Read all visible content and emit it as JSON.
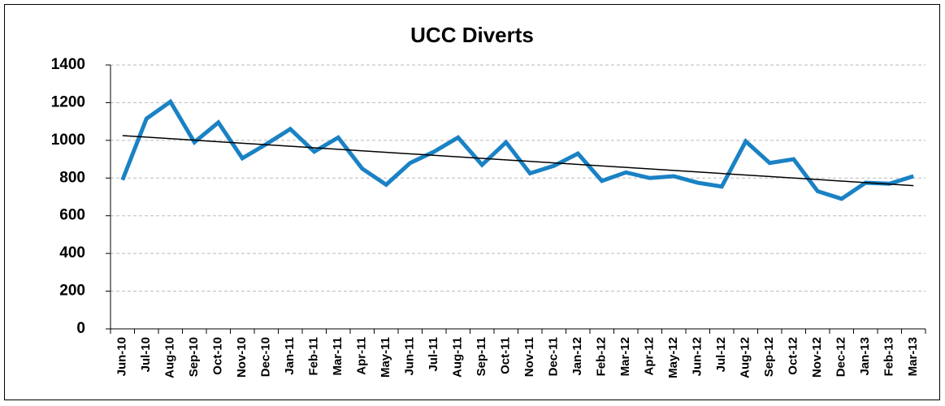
{
  "chart_data": {
    "type": "line",
    "title": "UCC Diverts",
    "categories": [
      "Jun-10",
      "Jul-10",
      "Aug-10",
      "Sep-10",
      "Oct-10",
      "Nov-10",
      "Dec-10",
      "Jan-11",
      "Feb-11",
      "Mar-11",
      "Apr-11",
      "May-11",
      "Jun-11",
      "Jul-11",
      "Aug-11",
      "Sep-11",
      "Oct-11",
      "Nov-11",
      "Dec-11",
      "Jan-12",
      "Feb-12",
      "Mar-12",
      "Apr-12",
      "May-12",
      "Jun-12",
      "Jul-12",
      "Aug-12",
      "Sep-12",
      "Oct-12",
      "Nov-12",
      "Dec-12",
      "Jan-13",
      "Feb-13",
      "Mar-13"
    ],
    "values": [
      790,
      1115,
      1205,
      990,
      1095,
      905,
      980,
      1060,
      940,
      1015,
      850,
      765,
      880,
      940,
      1015,
      870,
      990,
      825,
      865,
      930,
      785,
      830,
      800,
      810,
      775,
      755,
      995,
      880,
      900,
      730,
      690,
      775,
      770,
      810
    ],
    "color": "#1a82c4",
    "trendline": {
      "start": 1025,
      "end": 760,
      "color": "#000000"
    },
    "ylim": [
      0,
      1400
    ],
    "yticks": [
      0,
      200,
      400,
      600,
      800,
      1000,
      1200,
      1400
    ],
    "grid": true
  }
}
